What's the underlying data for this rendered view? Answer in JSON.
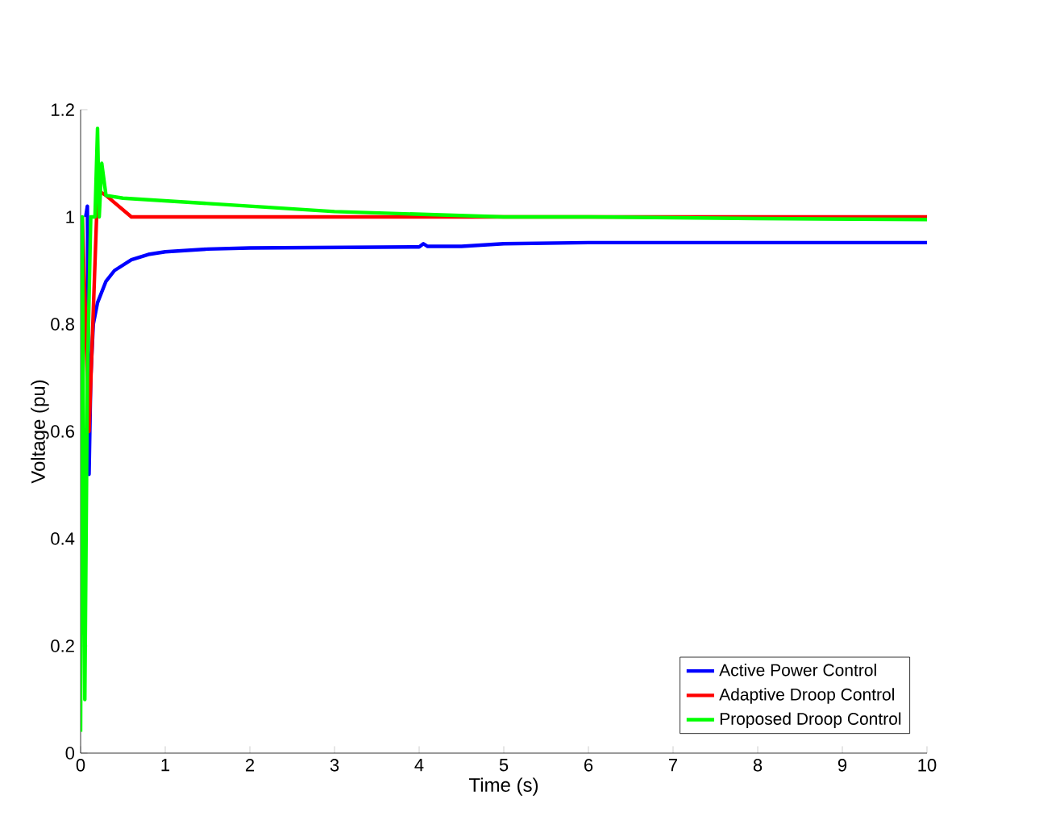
{
  "chart_data": {
    "type": "line",
    "xlabel": "Time (s)",
    "ylabel": "Voltage (pu)",
    "xlim": [
      0,
      10
    ],
    "ylim": [
      0,
      1.2
    ],
    "xticks": [
      0,
      1,
      2,
      3,
      4,
      5,
      6,
      7,
      8,
      9,
      10
    ],
    "yticks": [
      0,
      0.2,
      0.4,
      0.6,
      0.8,
      1,
      1.2
    ],
    "legend": "bottom right",
    "grid": false,
    "series": [
      {
        "name": "Active Power Control",
        "color": "#0000ff",
        "x": [
          0.06,
          0.08,
          0.1,
          0.12,
          0.15,
          0.2,
          0.3,
          0.4,
          0.6,
          0.8,
          1,
          1.5,
          2,
          3,
          4,
          4.05,
          4.1,
          4.5,
          5,
          6,
          8,
          10
        ],
        "values": [
          1.0,
          1.02,
          0.52,
          0.7,
          0.8,
          0.84,
          0.88,
          0.9,
          0.92,
          0.93,
          0.935,
          0.94,
          0.942,
          0.943,
          0.944,
          0.95,
          0.945,
          0.945,
          0.95,
          0.952,
          0.952,
          0.952
        ]
      },
      {
        "name": "Adaptive Droop Control",
        "color": "#ff0000",
        "x": [
          0.02,
          0.1,
          0.2,
          0.3,
          0.6,
          1,
          5,
          10
        ],
        "values": [
          1.0,
          0.6,
          1.05,
          1.04,
          1.0,
          1.0,
          null,
          1.0
        ]
      },
      {
        "name": "Proposed Droop Control",
        "color": "#00ff00",
        "x": [
          0,
          0.02,
          0.05,
          0.08,
          0.12,
          0.17,
          0.2,
          0.22,
          0.25,
          0.3,
          0.5,
          1,
          2,
          3,
          4,
          5,
          6,
          8,
          10
        ],
        "values": [
          0.04,
          1.0,
          0.1,
          0.7,
          1.0,
          1.0,
          1.165,
          1.0,
          1.1,
          1.04,
          1.035,
          1.03,
          1.02,
          1.01,
          1.005,
          1.0,
          1.0,
          0.997,
          0.995
        ]
      }
    ]
  }
}
